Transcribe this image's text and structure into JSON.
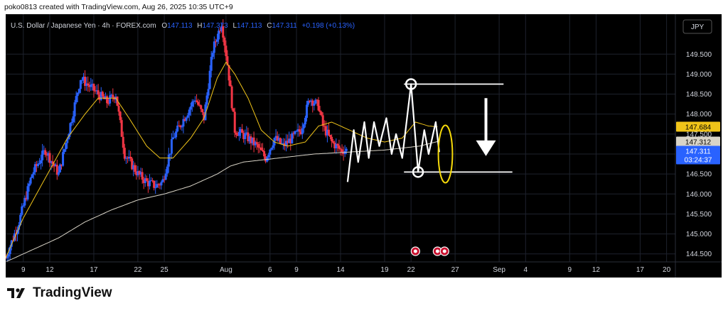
{
  "header": {
    "caption": "poko0813 created with TradingView.com, Aug 26, 2025 10:35 UTC+9"
  },
  "footer": {
    "brand": "TradingView"
  },
  "colors": {
    "background": "#000000",
    "up_candle": "#2962ff",
    "down_candle": "#f23645",
    "ma_fast": "#f0c419",
    "ma_slow": "#d9d4c7",
    "projection": "#ffffff",
    "highlight": "#f5d90a"
  },
  "chart_data": {
    "type": "candlestick",
    "instrument": "U.S. Dollar / Japanese Yen · 4h · FOREX.com",
    "ohlc": {
      "o_label": "O",
      "o": "147.113",
      "h_label": "H",
      "h": "147.373",
      "l_label": "L",
      "l": "147.113",
      "c_label": "C",
      "c": "147.311",
      "change": "+0.198 (+0.13%)"
    },
    "currency": "JPY",
    "ylim": [
      144.3,
      150.5
    ],
    "y_ticks": [
      "144.500",
      "145.000",
      "145.500",
      "146.000",
      "146.500",
      "147.000",
      "147.500",
      "148.000",
      "148.500",
      "149.000",
      "149.500"
    ],
    "x_ticks": [
      "9",
      "12",
      "17",
      "22",
      "25",
      "Aug",
      "6",
      "9",
      "14",
      "19",
      "22",
      "27",
      "Sep",
      "4",
      "9",
      "12",
      "17",
      "20"
    ],
    "x_tick_days": [
      9,
      12,
      17,
      22,
      25,
      32,
      37,
      40,
      45,
      50,
      53,
      58,
      63,
      66,
      71,
      74,
      79,
      82
    ],
    "x_range_days": [
      7,
      83
    ],
    "price_labels": {
      "ma_fast": {
        "value": 147.684,
        "text": "147.684",
        "color": "#f0c419",
        "text_color": "#000000"
      },
      "ma_slow": {
        "value": 147.312,
        "text": "147.312",
        "color": "#d9d4c7",
        "text_color": "#000000"
      },
      "last": {
        "value": 147.311,
        "text": "147.311",
        "countdown": "03:24:37",
        "color": "#2962ff",
        "text_color": "#ffffff"
      }
    },
    "price_anchors": [
      [
        7,
        144.4
      ],
      [
        8.5,
        145.3
      ],
      [
        10,
        146.5
      ],
      [
        11.5,
        147.1
      ],
      [
        13,
        146.5
      ],
      [
        14.5,
        147.9
      ],
      [
        15.5,
        148.9
      ],
      [
        17,
        148.6
      ],
      [
        18.5,
        148.3
      ],
      [
        19.5,
        148.5
      ],
      [
        20.5,
        147.0
      ],
      [
        22,
        146.5
      ],
      [
        23,
        146.3
      ],
      [
        24,
        146.2
      ],
      [
        24.8,
        146.3
      ],
      [
        26,
        147.4
      ],
      [
        27.5,
        148.0
      ],
      [
        28.5,
        148.4
      ],
      [
        29.5,
        147.9
      ],
      [
        30.5,
        149.6
      ],
      [
        31.5,
        150.3
      ],
      [
        32.2,
        149.2
      ],
      [
        33,
        147.6
      ],
      [
        34.5,
        147.4
      ],
      [
        35.5,
        147.2
      ],
      [
        36.5,
        146.9
      ],
      [
        37.5,
        147.4
      ],
      [
        38.5,
        147.2
      ],
      [
        39.5,
        147.4
      ],
      [
        40.5,
        147.6
      ],
      [
        41.5,
        148.4
      ],
      [
        42.5,
        148.2
      ],
      [
        43,
        147.7
      ],
      [
        44,
        147.3
      ],
      [
        45,
        147.1
      ],
      [
        45.8,
        147.1
      ]
    ],
    "ma_fast_anchors": [
      [
        7,
        144.4
      ],
      [
        9,
        145.4
      ],
      [
        12,
        146.6
      ],
      [
        14,
        147.4
      ],
      [
        16,
        148.0
      ],
      [
        17.5,
        148.4
      ],
      [
        19.5,
        148.4
      ],
      [
        21,
        147.9
      ],
      [
        23,
        147.2
      ],
      [
        24.5,
        146.9
      ],
      [
        26,
        146.9
      ],
      [
        28,
        147.4
      ],
      [
        29.5,
        147.9
      ],
      [
        31,
        148.9
      ],
      [
        32,
        149.3
      ],
      [
        33,
        149.0
      ],
      [
        34.5,
        148.4
      ],
      [
        36,
        147.6
      ],
      [
        37.5,
        147.3
      ],
      [
        39,
        147.2
      ],
      [
        41,
        147.3
      ],
      [
        42.5,
        147.7
      ],
      [
        44,
        147.8
      ],
      [
        46,
        147.6
      ],
      [
        48,
        147.4
      ],
      [
        50,
        147.3
      ],
      [
        52,
        147.4
      ],
      [
        53.5,
        147.8
      ],
      [
        55,
        147.7
      ],
      [
        56,
        147.684
      ]
    ],
    "ma_slow_anchors": [
      [
        7,
        144.3
      ],
      [
        10,
        144.6
      ],
      [
        13,
        144.9
      ],
      [
        16,
        145.3
      ],
      [
        19,
        145.6
      ],
      [
        22,
        145.85
      ],
      [
        25,
        146.0
      ],
      [
        28,
        146.2
      ],
      [
        31,
        146.5
      ],
      [
        32.5,
        146.7
      ],
      [
        34,
        146.8
      ],
      [
        38,
        146.9
      ],
      [
        42,
        147.0
      ],
      [
        46,
        147.05
      ],
      [
        50,
        147.1
      ],
      [
        54,
        147.2
      ],
      [
        56,
        147.312
      ]
    ],
    "projection_path": [
      [
        45.8,
        146.3
      ],
      [
        46.5,
        147.6
      ],
      [
        47,
        146.8
      ],
      [
        47.7,
        147.8
      ],
      [
        48.2,
        146.9
      ],
      [
        48.8,
        147.8
      ],
      [
        49.4,
        147.2
      ],
      [
        50.2,
        147.9
      ],
      [
        50.8,
        147.0
      ],
      [
        51.3,
        147.5
      ],
      [
        52,
        146.9
      ],
      [
        53,
        148.75
      ],
      [
        53.8,
        146.55
      ],
      [
        54.5,
        147.6
      ],
      [
        55,
        147.0
      ],
      [
        55.8,
        147.8
      ],
      [
        56.2,
        147.05
      ]
    ],
    "resistance": {
      "value": 148.75,
      "from_day": 52.2,
      "to_day": 63.5
    },
    "support": {
      "value": 146.55,
      "from_day": 52.2,
      "to_day": 64.5
    },
    "markers": [
      {
        "day": 53,
        "value": 148.75
      },
      {
        "day": 53.8,
        "value": 146.55
      }
    ],
    "arrow": {
      "day": 61.5,
      "from": 148.4,
      "to": 146.95,
      "direction": "down"
    },
    "ellipse": {
      "day": 56.9,
      "value": 147.0,
      "rx_days": 0.8,
      "ry_value": 0.72
    },
    "event_icons": [
      {
        "day": 53.5
      },
      {
        "day": 56.0
      },
      {
        "day": 56.8
      }
    ]
  }
}
